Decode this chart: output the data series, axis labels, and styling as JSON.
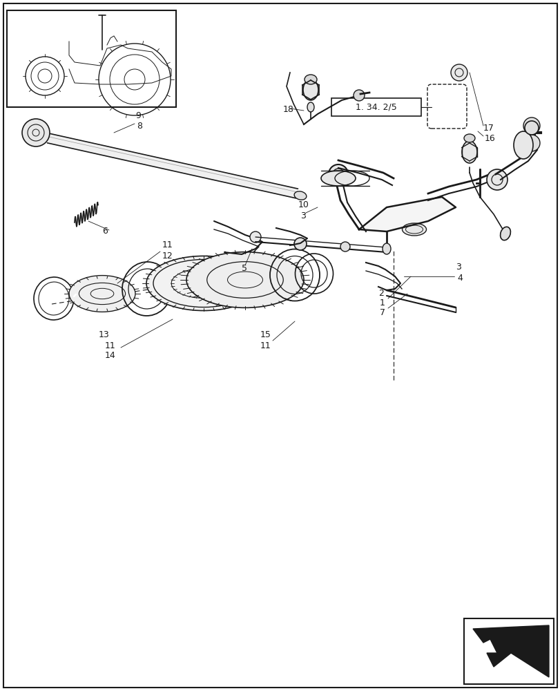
{
  "bg_color": "#ffffff",
  "line_color": "#1a1a1a",
  "fig_width": 8.12,
  "fig_height": 10.0,
  "dpi": 100,
  "ref_label": "1.34.2/5"
}
